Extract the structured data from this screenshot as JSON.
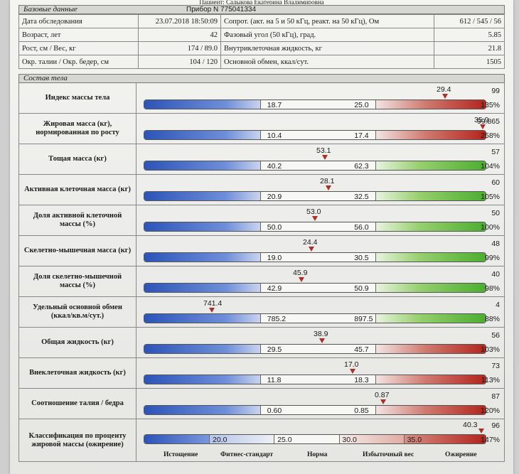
{
  "patient_name": "Пациент: Садыкова Екатерина Владимировна",
  "basic_header": "Базовые данные",
  "device": "Прибор N 775041334",
  "basic": {
    "date_label": "Дата обследования",
    "date_value": "23.07.2018 18:50:09",
    "resist_label": "Сопрот. (акт. на 5 и 50 кГц, реакт. на 50 кГц), Ом",
    "resist_value": "612 / 545 / 56",
    "age_label": "Возраст, лет",
    "age_value": "42",
    "phase_label": "Фазовый угол (50 кГц), град.",
    "phase_value": "5.85",
    "height_label": "Рост, см / Вес, кг",
    "height_value": "174 / 89.0",
    "icw_label": "Внутриклеточная жидкость, кг",
    "icw_value": "21.8",
    "waist_label": "Окр. талии / Окр. бедер, см",
    "waist_value": "104 / 120",
    "bmr_label": "Основной обмен, ккал/сут.",
    "bmr_value": "1505"
  },
  "composition_header": "Состав тела",
  "metrics": [
    {
      "label": "Индекс массы тела",
      "low": "18.7",
      "high": "25.0",
      "value": "29.4",
      "marker_pos": 0.88,
      "right_top": "99",
      "right_bottom": "135%",
      "tail": "red"
    },
    {
      "label": "Жировая масса (кг), нормированная по росту",
      "low": "10.4",
      "high": "17.4",
      "value": "35.9",
      "marker_pos": 0.99,
      "right_top": "99.865",
      "right_bottom": "258%",
      "tail": "red"
    },
    {
      "label": "Тощая масса (кг)",
      "low": "40.2",
      "high": "62.3",
      "value": "53.1",
      "marker_pos": 0.53,
      "right_top": "57",
      "right_bottom": "104%",
      "tail": "green"
    },
    {
      "label": "Активная клеточная масса (кг)",
      "low": "20.9",
      "high": "32.5",
      "value": "28.1",
      "marker_pos": 0.54,
      "right_top": "60",
      "right_bottom": "105%",
      "tail": "green"
    },
    {
      "label": "Доля активной клеточной массы (%)",
      "low": "50.0",
      "high": "56.0",
      "value": "53.0",
      "marker_pos": 0.5,
      "right_top": "50",
      "right_bottom": "100%",
      "tail": "green"
    },
    {
      "label": "Скелетно-мышечная масса (кг)",
      "low": "19.0",
      "high": "30.5",
      "value": "24.4",
      "marker_pos": 0.49,
      "right_top": "48",
      "right_bottom": "99%",
      "tail": "green"
    },
    {
      "label": "Доля скелетно-мышечной массы (%)",
      "low": "42.9",
      "high": "50.9",
      "value": "45.9",
      "marker_pos": 0.46,
      "right_top": "40",
      "right_bottom": "98%",
      "tail": "green"
    },
    {
      "label": "Удельный основной обмен (ккал/кв.м/сут.)",
      "low": "785.2",
      "high": "897.5",
      "value": "741.4",
      "marker_pos": 0.2,
      "right_top": "4",
      "right_bottom": "88%",
      "tail": "green"
    },
    {
      "label": "Общая жидкость (кг)",
      "low": "29.5",
      "high": "45.7",
      "value": "38.9",
      "marker_pos": 0.52,
      "right_top": "56",
      "right_bottom": "103%",
      "tail": "red"
    },
    {
      "label": "Внеклеточная жидкость (кг)",
      "low": "11.8",
      "high": "18.3",
      "value": "17.0",
      "marker_pos": 0.61,
      "right_top": "73",
      "right_bottom": "113%",
      "tail": "red"
    },
    {
      "label": "Соотношение талия / бедра",
      "low": "0.60",
      "high": "0.85",
      "value": "0.87",
      "marker_pos": 0.7,
      "right_top": "87",
      "right_bottom": "120%",
      "tail": "red"
    }
  ],
  "classification": {
    "label": "Классификация по проценту жировой массы (ожирение)",
    "ticks": [
      "20.0",
      "25.0",
      "30.0",
      "35.0"
    ],
    "value": "40.3",
    "marker_pos": 0.985,
    "right_top": "96",
    "right_bottom": "147%",
    "categories": [
      "Истощение",
      "Фитнес-стандарт",
      "Норма",
      "Избыточный вес",
      "Ожирение"
    ]
  }
}
